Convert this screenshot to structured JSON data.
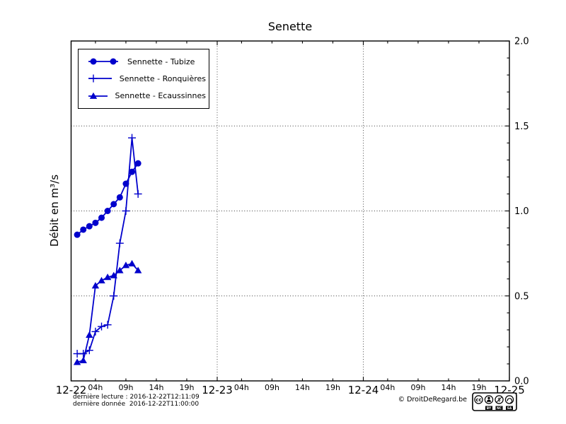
{
  "footer": {
    "last_read": "dernière lecture : 2016-12-22T12:11:09",
    "last_data": "dernière donnée  2016-12-22T11:00:00",
    "copyright": "© DroitDeRegard.be",
    "license": "CC BY-NC-SA",
    "license_parts": [
      "BY",
      "NC",
      "SA"
    ]
  },
  "chart_data": {
    "type": "line",
    "title": "Senette",
    "ylabel": "Débit en m³/s",
    "xlabel": "",
    "grid": "dotted at day boundaries and 0.5 steps",
    "legend_position": "upper-left",
    "y_axis_labels_side": "right",
    "line_color": "#0000cc",
    "xlim_hours": [
      0,
      72
    ],
    "ylim": [
      0,
      2
    ],
    "x_major_ticks": [
      {
        "hour": 0,
        "label": "12-22"
      },
      {
        "hour": 24,
        "label": "12-23"
      },
      {
        "hour": 48,
        "label": "12-24"
      },
      {
        "hour": 72,
        "label": "12-25"
      }
    ],
    "x_minor_ticks": [
      {
        "hour": 4,
        "label": "04h"
      },
      {
        "hour": 9,
        "label": "09h"
      },
      {
        "hour": 14,
        "label": "14h"
      },
      {
        "hour": 19,
        "label": "19h"
      },
      {
        "hour": 28,
        "label": "04h"
      },
      {
        "hour": 33,
        "label": "09h"
      },
      {
        "hour": 38,
        "label": "14h"
      },
      {
        "hour": 43,
        "label": "19h"
      },
      {
        "hour": 52,
        "label": "04h"
      },
      {
        "hour": 57,
        "label": "09h"
      },
      {
        "hour": 62,
        "label": "14h"
      },
      {
        "hour": 67,
        "label": "19h"
      }
    ],
    "y_major_ticks": [
      {
        "value": 0.0,
        "label": "0.0"
      },
      {
        "value": 0.5,
        "label": "0.5"
      },
      {
        "value": 1.0,
        "label": "1.0"
      },
      {
        "value": 1.5,
        "label": "1.5"
      },
      {
        "value": 2.0,
        "label": "2.0"
      }
    ],
    "y_minor_step": 0.1,
    "grid_vertical_hours": [
      24,
      48
    ],
    "grid_horizontal_values": [
      0.5,
      1.0,
      1.5
    ],
    "x_hours": [
      1,
      2,
      3,
      4,
      5,
      6,
      7,
      8,
      9,
      10,
      11
    ],
    "series": [
      {
        "name": "Sennette - Tubize",
        "marker": "circle",
        "values": [
          0.86,
          0.89,
          0.91,
          0.93,
          0.96,
          1.0,
          1.04,
          1.08,
          1.16,
          1.23,
          1.28
        ]
      },
      {
        "name": "Sennette - Ronquières",
        "marker": "plus",
        "values": [
          0.16,
          0.16,
          0.18,
          0.29,
          0.32,
          0.33,
          0.5,
          0.81,
          1.0,
          1.43,
          1.1
        ]
      },
      {
        "name": "Sennette - Ecaussinnes",
        "marker": "triangle",
        "values": [
          0.11,
          0.12,
          0.27,
          0.56,
          0.59,
          0.61,
          0.62,
          0.65,
          0.68,
          0.69,
          0.65
        ]
      }
    ]
  }
}
